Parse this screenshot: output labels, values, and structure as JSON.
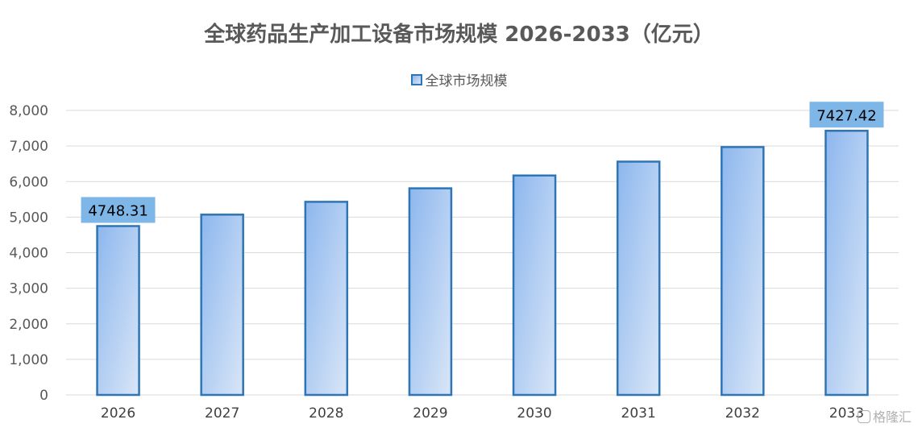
{
  "chart_data": {
    "type": "bar",
    "title": "全球药品生产加工设备市场规模 2026-2033（亿元）",
    "categories": [
      "2026",
      "2027",
      "2028",
      "2029",
      "2030",
      "2031",
      "2032",
      "2033"
    ],
    "series": [
      {
        "name": "全球市场规模",
        "values": [
          4748.31,
          5070,
          5430,
          5810,
          6170,
          6560,
          6970,
          7427.42
        ]
      }
    ],
    "data_labels": [
      {
        "index": 0,
        "text": "4748.31"
      },
      {
        "index": 7,
        "text": "7427.42"
      }
    ],
    "ylim": [
      0,
      8000
    ],
    "yticks": [
      "0",
      "1,000",
      "2,000",
      "3,000",
      "4,000",
      "5,000",
      "6,000",
      "7,000",
      "8,000"
    ],
    "grid": true,
    "legend_position": "top",
    "colors": {
      "bar_border": "#2e75b6",
      "bar_fill_start": "#8db7ee",
      "bar_fill_end": "#d9e6f7",
      "data_label_bg": "#7eb6e8",
      "grid": "#d9d9d9"
    }
  },
  "watermark": {
    "text": "格隆汇",
    "icon": "gelonghui-logo-icon"
  }
}
